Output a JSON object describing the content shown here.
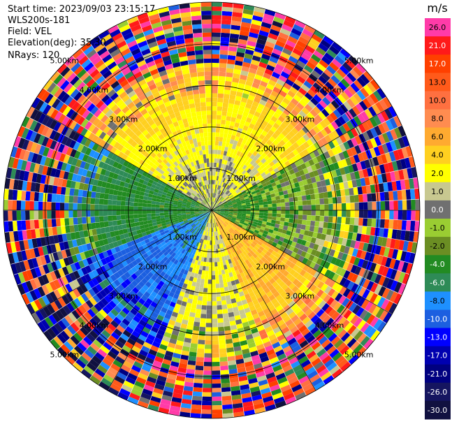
{
  "info": {
    "start_time": "Start time: 2023/09/03 23:15:17",
    "device": "WLS200s-181",
    "field": "Field: VEL",
    "elevation": "Elevation(deg): 35.30",
    "nrays": "NRays: 120"
  },
  "colorbar": {
    "unit": "m/s",
    "bins": [
      {
        "label": "26.0",
        "color": "#ff3ba8"
      },
      {
        "label": "21.0",
        "color": "#ff1a1a"
      },
      {
        "label": "17.0",
        "color": "#ff4000"
      },
      {
        "label": "13.0",
        "color": "#ff5a1a"
      },
      {
        "label": "10.0",
        "color": "#ff7040"
      },
      {
        "label": "8.0",
        "color": "#ff8c50"
      },
      {
        "label": "6.0",
        "color": "#ffaa30"
      },
      {
        "label": "4.0",
        "color": "#ffd020"
      },
      {
        "label": "2.0",
        "color": "#ffff00"
      },
      {
        "label": "1.0",
        "color": "#c8c890"
      },
      {
        "label": "0.0",
        "color": "#707070"
      },
      {
        "label": "-1.0",
        "color": "#9acd32"
      },
      {
        "label": "-2.0",
        "color": "#6b8e23"
      },
      {
        "label": "-4.0",
        "color": "#228b22"
      },
      {
        "label": "-6.0",
        "color": "#2e8b57"
      },
      {
        "label": "-8.0",
        "color": "#1e90ff"
      },
      {
        "label": "-10.0",
        "color": "#1c5fe0"
      },
      {
        "label": "-13.0",
        "color": "#0000ff"
      },
      {
        "label": "-17.0",
        "color": "#0000b0"
      },
      {
        "label": "-21.0",
        "color": "#000080"
      },
      {
        "label": "-26.0",
        "color": "#151560"
      },
      {
        "label": "-30.0",
        "color": "#111140"
      }
    ]
  },
  "chart_data": {
    "type": "heatmap",
    "projection": "polar-ppi",
    "field": "VEL",
    "unit": "m/s",
    "nrays": 120,
    "range_rings_km": [
      1.0,
      2.0,
      3.0,
      4.0,
      5.0
    ],
    "ring_labels": [
      "1.00km",
      "2.00km",
      "3.00km",
      "4.00km",
      "5.00km"
    ],
    "vmin": -30,
    "vmax": 30,
    "sectors": [
      {
        "azimuth_deg": [
          300,
          60
        ],
        "near_range_mean": 0.5,
        "far_range_mean": 8.0
      },
      {
        "azimuth_deg": [
          60,
          120
        ],
        "near_range_mean": -3.0,
        "far_range_mean": 2.0
      },
      {
        "azimuth_deg": [
          120,
          160
        ],
        "near_range_mean": 6.0,
        "far_range_mean": 6.0
      },
      {
        "azimuth_deg": [
          160,
          200
        ],
        "near_range_mean": 2.0,
        "far_range_mean": 2.0
      },
      {
        "azimuth_deg": [
          200,
          250
        ],
        "near_range_mean": -6.0,
        "far_range_mean": -12.0
      },
      {
        "azimuth_deg": [
          250,
          300
        ],
        "near_range_mean": -3.0,
        "far_range_mean": -5.0
      }
    ]
  }
}
